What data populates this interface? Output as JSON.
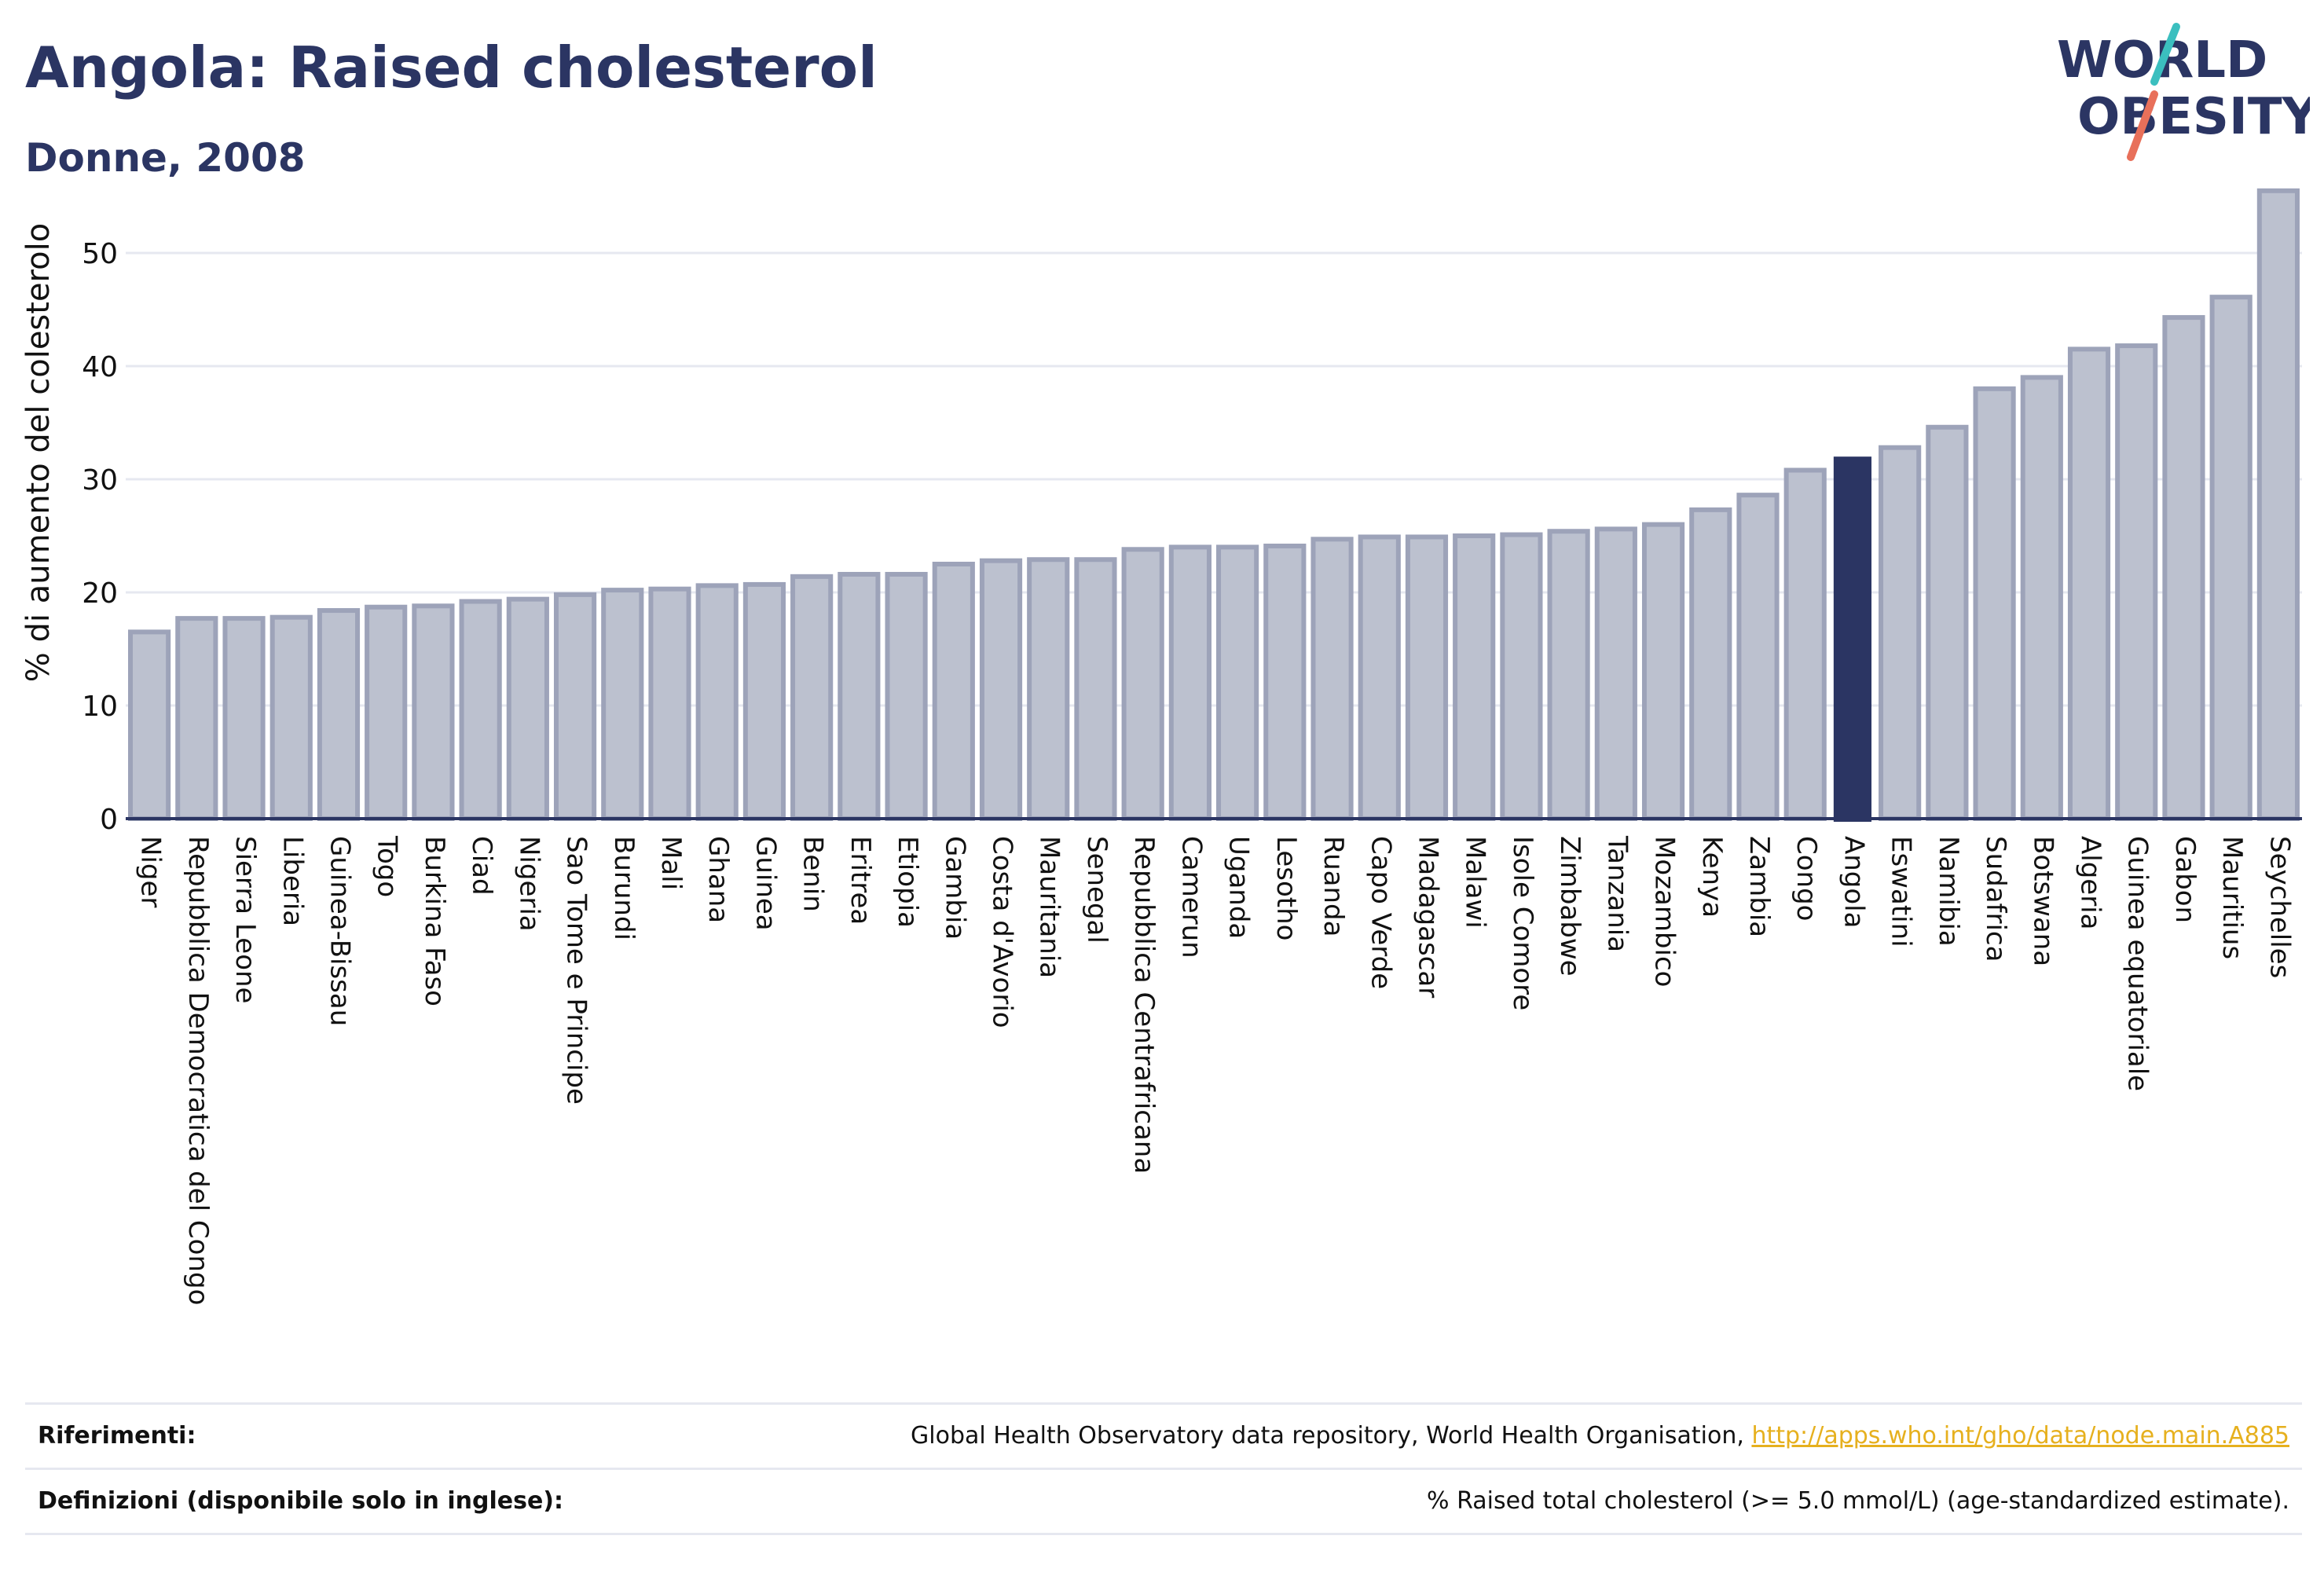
{
  "header": {
    "title": "Angola: Raised cholesterol",
    "subtitle": "Donne, 2008"
  },
  "logo": {
    "line1": "WORLD",
    "line2": "OBESITY",
    "colors": {
      "text": "#2b3563",
      "slash_teal": "#3bbfbf",
      "slash_coral": "#e8705a"
    }
  },
  "colors": {
    "bar_fill": "#bcc1cf",
    "bar_stroke": "#9da3b9",
    "highlight": "#2b3563",
    "grid": "#e6e8f0",
    "axis": "#2b3563"
  },
  "chart_data": {
    "type": "bar",
    "ylabel": "% di aumento del colesterolo",
    "xlabel": "",
    "ylim": [
      0,
      55
    ],
    "yticks": [
      0,
      10,
      20,
      30,
      40,
      50
    ],
    "grid": true,
    "highlight": "Angola",
    "categories": [
      "Niger",
      "Repubblica Democratica del Congo",
      "Sierra Leone",
      "Liberia",
      "Guinea-Bissau",
      "Togo",
      "Burkina Faso",
      "Ciad",
      "Nigeria",
      "Sao Tome e Principe",
      "Burundi",
      "Mali",
      "Ghana",
      "Guinea",
      "Benin",
      "Eritrea",
      "Etiopia",
      "Gambia",
      "Costa d'Avorio",
      "Mauritania",
      "Senegal",
      "Repubblica Centrafricana",
      "Camerun",
      "Uganda",
      "Lesotho",
      "Ruanda",
      "Capo Verde",
      "Madagascar",
      "Malawi",
      "Isole Comore",
      "Zimbabwe",
      "Tanzania",
      "Mozambico",
      "Kenya",
      "Zambia",
      "Congo",
      "Angola",
      "Eswatini",
      "Namibia",
      "Sudafrica",
      "Botswana",
      "Algeria",
      "Guinea equatoriale",
      "Gabon",
      "Mauritius",
      "Seychelles"
    ],
    "values": [
      16.5,
      17.7,
      17.7,
      17.8,
      18.4,
      18.7,
      18.8,
      19.2,
      19.4,
      19.8,
      20.2,
      20.3,
      20.6,
      20.7,
      21.4,
      21.6,
      21.6,
      22.5,
      22.8,
      22.9,
      22.9,
      23.8,
      24.0,
      24.0,
      24.1,
      24.7,
      24.9,
      24.9,
      25.0,
      25.1,
      25.4,
      25.6,
      26.0,
      27.3,
      28.6,
      30.8,
      32.0,
      32.8,
      34.6,
      38.0,
      39.0,
      41.5,
      41.8,
      44.3,
      46.1,
      55.5
    ]
  },
  "footer": {
    "references_label": "Riferimenti:",
    "references_text": "Global Health Observatory data repository, World Health Organisation, ",
    "references_link": "http://apps.who.int/gho/data/node.main.A885",
    "definitions_label": "Definizioni (disponibile solo in inglese):",
    "definitions_text": "% Raised total cholesterol (>= 5.0 mmol/L) (age-standardized estimate)."
  }
}
